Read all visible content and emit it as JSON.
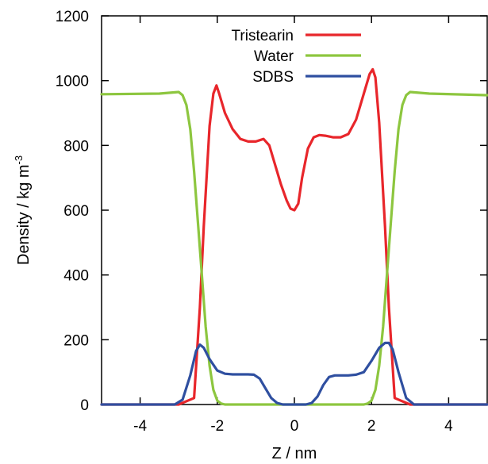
{
  "chart_data": {
    "type": "line",
    "xlabel": "Z / nm",
    "ylabel_main": "Density / kg m",
    "ylabel_sup": "-3",
    "xlim": [
      -5,
      5
    ],
    "ylim": [
      0,
      1200
    ],
    "x_ticks": [
      -4,
      -2,
      0,
      2,
      4
    ],
    "y_ticks": [
      0,
      200,
      400,
      600,
      800,
      1000,
      1200
    ],
    "legend_position": "top-center",
    "grid": false,
    "series": [
      {
        "name": "Tristearin",
        "color": "#e8262b",
        "x": [
          -5,
          -3,
          -2.6,
          -2.45,
          -2.35,
          -2.2,
          -2.1,
          -2.02,
          -1.95,
          -1.8,
          -1.6,
          -1.4,
          -1.2,
          -1.0,
          -0.8,
          -0.65,
          -0.5,
          -0.35,
          -0.2,
          -0.1,
          0,
          0.1,
          0.2,
          0.35,
          0.5,
          0.65,
          0.8,
          1.0,
          1.2,
          1.4,
          1.6,
          1.8,
          1.95,
          2.03,
          2.1,
          2.2,
          2.35,
          2.45,
          2.6,
          3,
          5
        ],
        "y": [
          0,
          0,
          20,
          300,
          550,
          860,
          960,
          985,
          960,
          900,
          850,
          820,
          812,
          812,
          820,
          800,
          740,
          680,
          630,
          605,
          600,
          620,
          700,
          790,
          825,
          832,
          830,
          825,
          825,
          835,
          880,
          960,
          1020,
          1035,
          1010,
          870,
          550,
          300,
          20,
          0,
          0
        ]
      },
      {
        "name": "Water",
        "color": "#8dc63f",
        "x": [
          -5,
          -3.5,
          -3.0,
          -2.9,
          -2.8,
          -2.7,
          -2.6,
          -2.5,
          -2.4,
          -2.3,
          -2.2,
          -2.1,
          -2.0,
          -1.9,
          -1.8,
          1.8,
          1.9,
          2.0,
          2.1,
          2.2,
          2.3,
          2.4,
          2.5,
          2.6,
          2.7,
          2.8,
          2.9,
          3.0,
          3.5,
          5
        ],
        "y": [
          958,
          960,
          965,
          955,
          925,
          850,
          720,
          560,
          400,
          240,
          120,
          45,
          12,
          3,
          0,
          0,
          3,
          12,
          45,
          120,
          240,
          400,
          560,
          720,
          850,
          925,
          955,
          965,
          960,
          955
        ]
      },
      {
        "name": "SDBS",
        "color": "#2f4fa0",
        "x": [
          -5,
          -3.1,
          -2.9,
          -2.7,
          -2.55,
          -2.45,
          -2.35,
          -2.2,
          -2.0,
          -1.8,
          -1.6,
          -1.4,
          -1.2,
          -1.05,
          -0.9,
          -0.75,
          -0.6,
          -0.45,
          -0.3,
          0.3,
          0.45,
          0.6,
          0.75,
          0.9,
          1.05,
          1.2,
          1.4,
          1.6,
          1.8,
          2.0,
          2.2,
          2.35,
          2.45,
          2.55,
          2.7,
          2.9,
          3.1,
          5
        ],
        "y": [
          0,
          0,
          15,
          90,
          165,
          185,
          175,
          140,
          105,
          95,
          93,
          93,
          93,
          92,
          80,
          50,
          20,
          5,
          0,
          0,
          5,
          25,
          60,
          85,
          90,
          90,
          90,
          92,
          100,
          135,
          175,
          190,
          190,
          170,
          100,
          20,
          0,
          0
        ]
      }
    ]
  }
}
